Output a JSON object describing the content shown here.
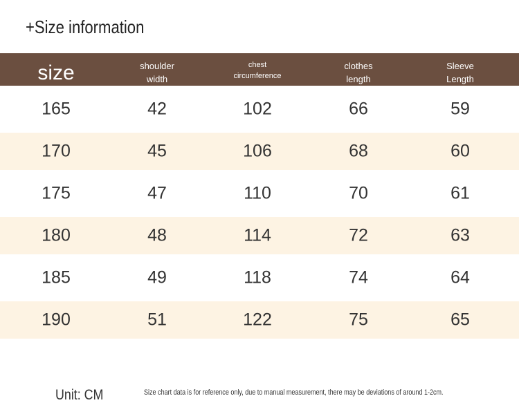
{
  "header": {
    "title": "+Size information"
  },
  "table": {
    "columns": [
      [
        "size"
      ],
      [
        "shoulder",
        "width"
      ],
      [
        "chest",
        "circumference"
      ],
      [
        "clothes",
        "length"
      ],
      [
        "Sleeve",
        "Length"
      ]
    ],
    "rows": [
      [
        165,
        42,
        102,
        66,
        59
      ],
      [
        170,
        45,
        106,
        68,
        60
      ],
      [
        175,
        47,
        110,
        70,
        61
      ],
      [
        180,
        48,
        114,
        72,
        63
      ],
      [
        185,
        49,
        118,
        74,
        64
      ],
      [
        190,
        51,
        122,
        75,
        65
      ]
    ]
  },
  "footer": {
    "unit": "Unit: CM",
    "note": "Size chart data is for reference only, due to manual measurement, there may be deviations of around 1-2cm."
  }
}
